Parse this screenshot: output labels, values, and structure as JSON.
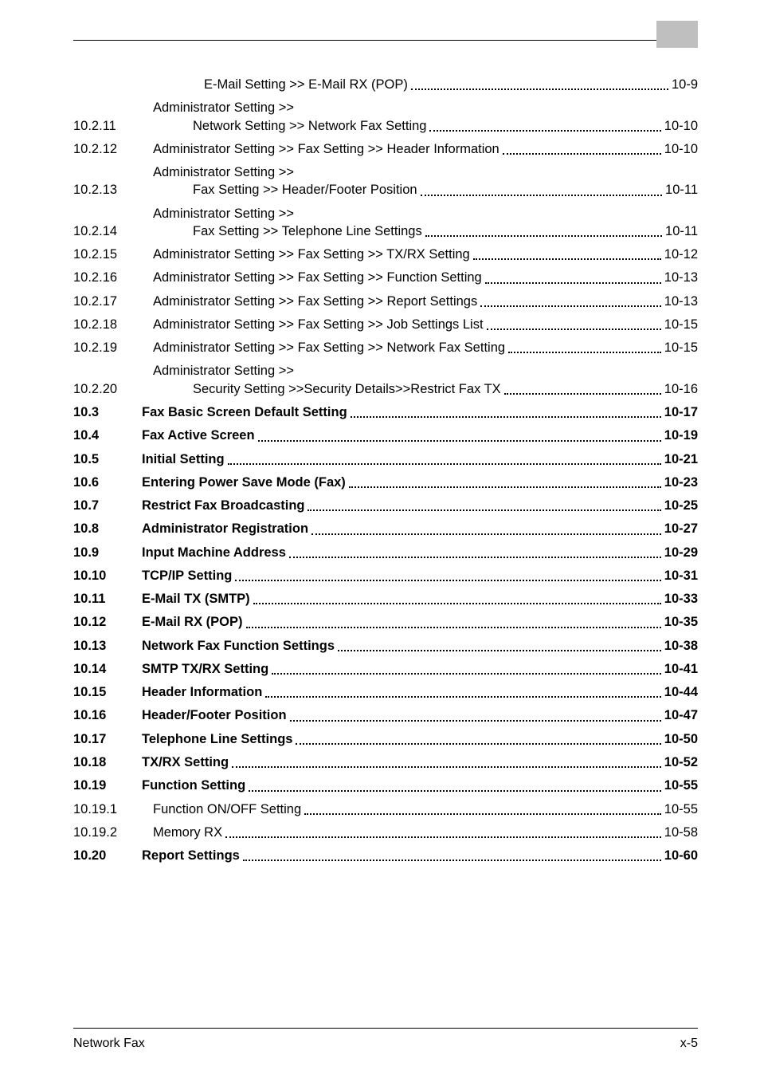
{
  "header": {
    "corner_tab_color": "#bfbfbf"
  },
  "toc": [
    {
      "level": 3,
      "num": "",
      "style": "plain",
      "multi": false,
      "title": "E-Mail Setting >> E-Mail RX (POP)",
      "page": "10-9"
    },
    {
      "level": 3,
      "num": "10.2.11",
      "style": "plain",
      "multi": true,
      "line1": "Administrator Setting >>",
      "line2": "Network Setting >> Network Fax Setting",
      "page": "10-10"
    },
    {
      "level": 3,
      "num": "10.2.12",
      "style": "plain",
      "multi": false,
      "title": "Administrator Setting >> Fax Setting >> Header Information",
      "page": "10-10"
    },
    {
      "level": 3,
      "num": "10.2.13",
      "style": "plain",
      "multi": true,
      "line1": "Administrator Setting >>",
      "line2": "Fax Setting >> Header/Footer Position",
      "page": "10-11"
    },
    {
      "level": 3,
      "num": "10.2.14",
      "style": "plain",
      "multi": true,
      "line1": "Administrator Setting >>",
      "line2": "Fax Setting >> Telephone Line Settings",
      "page": "10-11"
    },
    {
      "level": 3,
      "num": "10.2.15",
      "style": "plain",
      "multi": false,
      "title": "Administrator Setting >> Fax Setting >> TX/RX Setting",
      "page": "10-12"
    },
    {
      "level": 3,
      "num": "10.2.16",
      "style": "plain",
      "multi": false,
      "title": "Administrator Setting >> Fax Setting >> Function Setting",
      "page": "10-13"
    },
    {
      "level": 3,
      "num": "10.2.17",
      "style": "plain",
      "multi": false,
      "title": "Administrator Setting >> Fax Setting >> Report Settings",
      "page": "10-13"
    },
    {
      "level": 3,
      "num": "10.2.18",
      "style": "plain",
      "multi": false,
      "title": "Administrator Setting >> Fax Setting >> Job Settings List",
      "page": "10-15"
    },
    {
      "level": 3,
      "num": "10.2.19",
      "style": "plain",
      "multi": false,
      "title": "Administrator Setting >> Fax Setting >> Network Fax Setting",
      "page": "10-15"
    },
    {
      "level": 3,
      "num": "10.2.20",
      "style": "plain",
      "multi": true,
      "line1": "Administrator Setting >>",
      "line2": "Security Setting >>Security Details>>Restrict Fax TX",
      "page": "10-16"
    },
    {
      "level": 2,
      "num": "10.3",
      "style": "bold",
      "multi": false,
      "title": "Fax Basic Screen Default Setting",
      "page": "10-17"
    },
    {
      "level": 2,
      "num": "10.4",
      "style": "bold",
      "multi": false,
      "title": "Fax Active Screen",
      "page": "10-19"
    },
    {
      "level": 2,
      "num": "10.5",
      "style": "bold",
      "multi": false,
      "title": "Initial Setting",
      "page": "10-21"
    },
    {
      "level": 2,
      "num": "10.6",
      "style": "bold",
      "multi": false,
      "title": "Entering Power Save Mode (Fax)",
      "page": "10-23"
    },
    {
      "level": 2,
      "num": "10.7",
      "style": "bold",
      "multi": false,
      "title": "Restrict Fax Broadcasting",
      "page": "10-25"
    },
    {
      "level": 2,
      "num": "10.8",
      "style": "bold",
      "multi": false,
      "title": "Administrator Registration",
      "page": "10-27"
    },
    {
      "level": 2,
      "num": "10.9",
      "style": "bold",
      "multi": false,
      "title": "Input Machine Address",
      "page": "10-29"
    },
    {
      "level": 2,
      "num": "10.10",
      "style": "bold",
      "multi": false,
      "title": "TCP/IP Setting",
      "page": "10-31"
    },
    {
      "level": 2,
      "num": "10.11",
      "style": "bold",
      "multi": false,
      "title": "E-Mail TX (SMTP)",
      "page": "10-33"
    },
    {
      "level": 2,
      "num": "10.12",
      "style": "bold",
      "multi": false,
      "title": "E-Mail RX (POP)",
      "page": "10-35"
    },
    {
      "level": 2,
      "num": "10.13",
      "style": "bold",
      "multi": false,
      "title": "Network Fax Function Settings",
      "page": "10-38"
    },
    {
      "level": 2,
      "num": "10.14",
      "style": "bold",
      "multi": false,
      "title": "SMTP TX/RX Setting",
      "page": "10-41"
    },
    {
      "level": 2,
      "num": "10.15",
      "style": "bold",
      "multi": false,
      "title": "Header Information",
      "page": "10-44"
    },
    {
      "level": 2,
      "num": "10.16",
      "style": "bold",
      "multi": false,
      "title": "Header/Footer Position",
      "page": "10-47"
    },
    {
      "level": 2,
      "num": "10.17",
      "style": "bold",
      "multi": false,
      "title": "Telephone Line Settings",
      "page": "10-50"
    },
    {
      "level": 2,
      "num": "10.18",
      "style": "bold",
      "multi": false,
      "title": "TX/RX Setting",
      "page": "10-52"
    },
    {
      "level": 2,
      "num": "10.19",
      "style": "bold",
      "multi": false,
      "title": "Function Setting",
      "page": "10-55"
    },
    {
      "level": 3,
      "num": "10.19.1",
      "style": "plain",
      "multi": false,
      "title": "Function ON/OFF Setting",
      "page": "10-55"
    },
    {
      "level": 3,
      "num": "10.19.2",
      "style": "plain",
      "multi": false,
      "title": "Memory RX",
      "page": "10-58"
    },
    {
      "level": 2,
      "num": "10.20",
      "style": "bold",
      "multi": false,
      "title": "Report Settings",
      "page": "10-60"
    }
  ],
  "footer": {
    "left": "Network Fax",
    "right": "x-5"
  }
}
